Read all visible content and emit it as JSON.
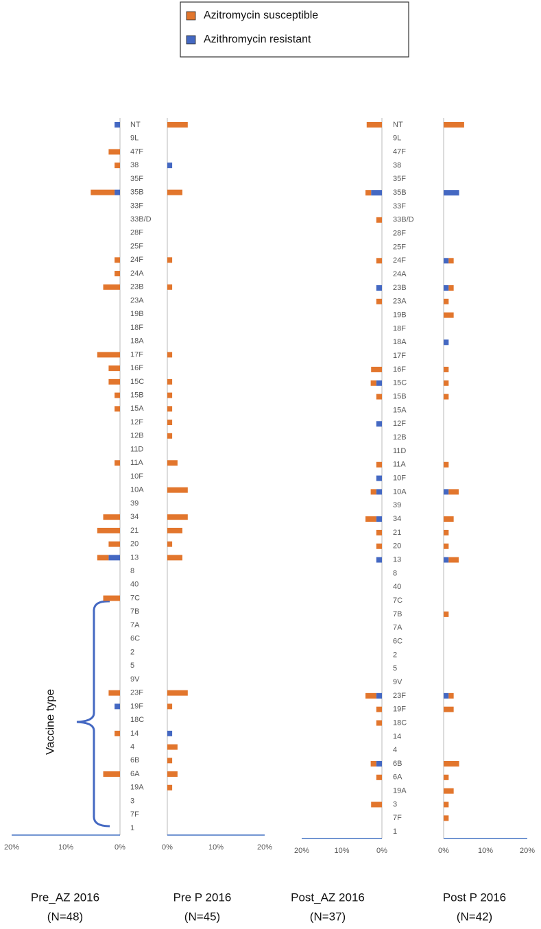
{
  "legend": {
    "entries": [
      {
        "name": "Azitromycin susceptible",
        "color": "#e2762d"
      },
      {
        "name": "Azithromycin resistant",
        "color": "#4468c2"
      }
    ]
  },
  "chart_data": [
    {
      "type": "bar",
      "orientation": "horizontal",
      "annotation": "Vaccine type",
      "categories": [
        "NT",
        "9L",
        "47F",
        "38",
        "35F",
        "35B",
        "33F",
        "33B/D",
        "28F",
        "25F",
        "24F",
        "24A",
        "23B",
        "23A",
        "19B",
        "18F",
        "18A",
        "17F",
        "16F",
        "15C",
        "15B",
        "15A",
        "12F",
        "12B",
        "11D",
        "11A",
        "10F",
        "10A",
        "39",
        "34",
        "21",
        "20",
        "13",
        "8",
        "40",
        "7C",
        "7B",
        "7A",
        "6C",
        "2",
        "5",
        "9V",
        "23F",
        "19F",
        "18C",
        "14",
        "4",
        "6B",
        "6A",
        "19A",
        "3",
        "7F",
        "1"
      ],
      "panels": [
        {
          "title": "Pre_AZ 2016",
          "subtitle": "(N=48)",
          "reversed": true,
          "xlim": [
            0,
            20
          ],
          "xticks": [
            {
              "value": 20,
              "label": "20%"
            },
            {
              "value": 10,
              "label": "10%"
            },
            {
              "value": 0,
              "label": "0%"
            }
          ],
          "series": [
            {
              "values": [
                null,
                null,
                2.1,
                1,
                null,
                4.4,
                null,
                null,
                null,
                null,
                1,
                1,
                3.1,
                null,
                null,
                null,
                null,
                4.2,
                2.1,
                2.1,
                1,
                1,
                null,
                null,
                null,
                1,
                null,
                null,
                null,
                3.1,
                4.2,
                2.1,
                2.1,
                null,
                null,
                3.1,
                null,
                null,
                null,
                null,
                null,
                null,
                2.1,
                null,
                null,
                1,
                null,
                null,
                3.1,
                null,
                null,
                null,
                null
              ]
            },
            {
              "values": [
                1,
                null,
                null,
                null,
                null,
                1,
                null,
                null,
                null,
                null,
                null,
                null,
                null,
                null,
                null,
                null,
                null,
                null,
                null,
                null,
                null,
                null,
                null,
                null,
                null,
                null,
                null,
                null,
                null,
                null,
                null,
                null,
                2.1,
                null,
                null,
                null,
                null,
                null,
                null,
                null,
                null,
                null,
                null,
                1,
                null,
                null,
                null,
                null,
                null,
                null,
                null,
                null,
                null
              ]
            }
          ]
        },
        {
          "title": "Pre P 2016",
          "subtitle": "(N=45)",
          "reversed": false,
          "xlim": [
            0,
            20
          ],
          "xticks": [
            {
              "value": 0,
              "label": "0%"
            },
            {
              "value": 10,
              "label": "10%"
            },
            {
              "value": 20,
              "label": "20%"
            }
          ],
          "series": [
            {
              "values": [
                4.2,
                null,
                null,
                null,
                null,
                3.1,
                null,
                null,
                null,
                null,
                1,
                null,
                1,
                null,
                null,
                null,
                null,
                1,
                null,
                1,
                1,
                1,
                1,
                1,
                null,
                2.1,
                null,
                4.2,
                null,
                4.2,
                3.1,
                1,
                3.1,
                null,
                null,
                null,
                null,
                null,
                null,
                null,
                null,
                null,
                4.2,
                1,
                null,
                null,
                2.1,
                1,
                2.1,
                1,
                null,
                null,
                null
              ]
            },
            {
              "values": [
                null,
                null,
                null,
                1,
                null,
                null,
                null,
                null,
                null,
                null,
                null,
                null,
                null,
                null,
                null,
                null,
                null,
                null,
                null,
                null,
                null,
                null,
                null,
                null,
                null,
                null,
                null,
                null,
                null,
                null,
                null,
                null,
                null,
                null,
                null,
                null,
                null,
                null,
                null,
                null,
                null,
                null,
                null,
                null,
                null,
                1,
                null,
                null,
                null,
                null,
                null,
                null,
                null
              ]
            }
          ]
        }
      ]
    },
    {
      "type": "bar",
      "orientation": "horizontal",
      "categories": [
        "NT",
        "9L",
        "47F",
        "38",
        "35F",
        "35B",
        "33F",
        "33B/D",
        "28F",
        "25F",
        "24F",
        "24A",
        "23B",
        "23A",
        "19B",
        "18F",
        "18A",
        "17F",
        "16F",
        "15C",
        "15B",
        "15A",
        "12F",
        "12B",
        "11D",
        "11A",
        "10F",
        "10A",
        "39",
        "34",
        "21",
        "20",
        "13",
        "8",
        "40",
        "7C",
        "7B",
        "7A",
        "6C",
        "2",
        "5",
        "9V",
        "23F",
        "19F",
        "18C",
        "14",
        "4",
        "6B",
        "6A",
        "19A",
        "3",
        "7F",
        "1"
      ],
      "panels": [
        {
          "title": "Post_AZ 2016",
          "subtitle": "(N=37)",
          "reversed": true,
          "xlim": [
            0,
            20
          ],
          "xticks": [
            {
              "value": 20,
              "label": "20%"
            },
            {
              "value": 10,
              "label": "10%"
            },
            {
              "value": 0,
              "label": "0%"
            }
          ],
          "series": [
            {
              "values": [
                3.8,
                null,
                null,
                null,
                null,
                1.4,
                null,
                1.4,
                null,
                null,
                1.4,
                null,
                null,
                1.4,
                null,
                null,
                null,
                null,
                2.7,
                1.4,
                1.4,
                null,
                null,
                null,
                null,
                1.4,
                null,
                1.4,
                null,
                2.7,
                1.4,
                1.4,
                null,
                null,
                null,
                null,
                null,
                null,
                null,
                null,
                null,
                null,
                2.7,
                1.4,
                1.4,
                null,
                null,
                1.4,
                1.4,
                null,
                2.7,
                null,
                null
              ]
            },
            {
              "values": [
                null,
                null,
                null,
                null,
                null,
                2.7,
                null,
                null,
                null,
                null,
                null,
                null,
                1.4,
                null,
                null,
                null,
                null,
                null,
                null,
                1.4,
                null,
                null,
                1.4,
                null,
                null,
                null,
                1.4,
                1.4,
                null,
                1.4,
                null,
                null,
                1.4,
                null,
                null,
                null,
                null,
                null,
                null,
                null,
                null,
                null,
                1.4,
                null,
                null,
                null,
                null,
                1.4,
                null,
                null,
                null,
                null,
                null
              ]
            }
          ]
        },
        {
          "title": "Post P 2016",
          "subtitle": "(N=42)",
          "reversed": false,
          "xlim": [
            0,
            20
          ],
          "xticks": [
            {
              "value": 0,
              "label": "0%"
            },
            {
              "value": 10,
              "label": "10%"
            },
            {
              "value": 20,
              "label": "20%"
            }
          ],
          "series": [
            {
              "values": [
                4.9,
                null,
                null,
                null,
                null,
                null,
                null,
                null,
                null,
                null,
                1.2,
                null,
                1.2,
                1.2,
                2.4,
                null,
                null,
                null,
                1.2,
                1.2,
                1.2,
                null,
                null,
                null,
                null,
                1.2,
                null,
                2.4,
                null,
                2.4,
                1.2,
                1.2,
                2.4,
                null,
                null,
                null,
                1.2,
                null,
                null,
                null,
                null,
                null,
                1.2,
                2.4,
                null,
                null,
                null,
                3.7,
                1.2,
                2.4,
                1.2,
                1.2,
                null
              ]
            },
            {
              "values": [
                null,
                null,
                null,
                null,
                null,
                3.7,
                null,
                null,
                null,
                null,
                1.2,
                null,
                1.2,
                null,
                null,
                null,
                1.2,
                null,
                null,
                null,
                null,
                null,
                null,
                null,
                null,
                null,
                null,
                1.2,
                null,
                null,
                null,
                null,
                1.2,
                null,
                null,
                null,
                null,
                null,
                null,
                null,
                null,
                null,
                1.2,
                null,
                null,
                null,
                null,
                null,
                null,
                null,
                null,
                null,
                null
              ]
            }
          ]
        }
      ]
    }
  ]
}
